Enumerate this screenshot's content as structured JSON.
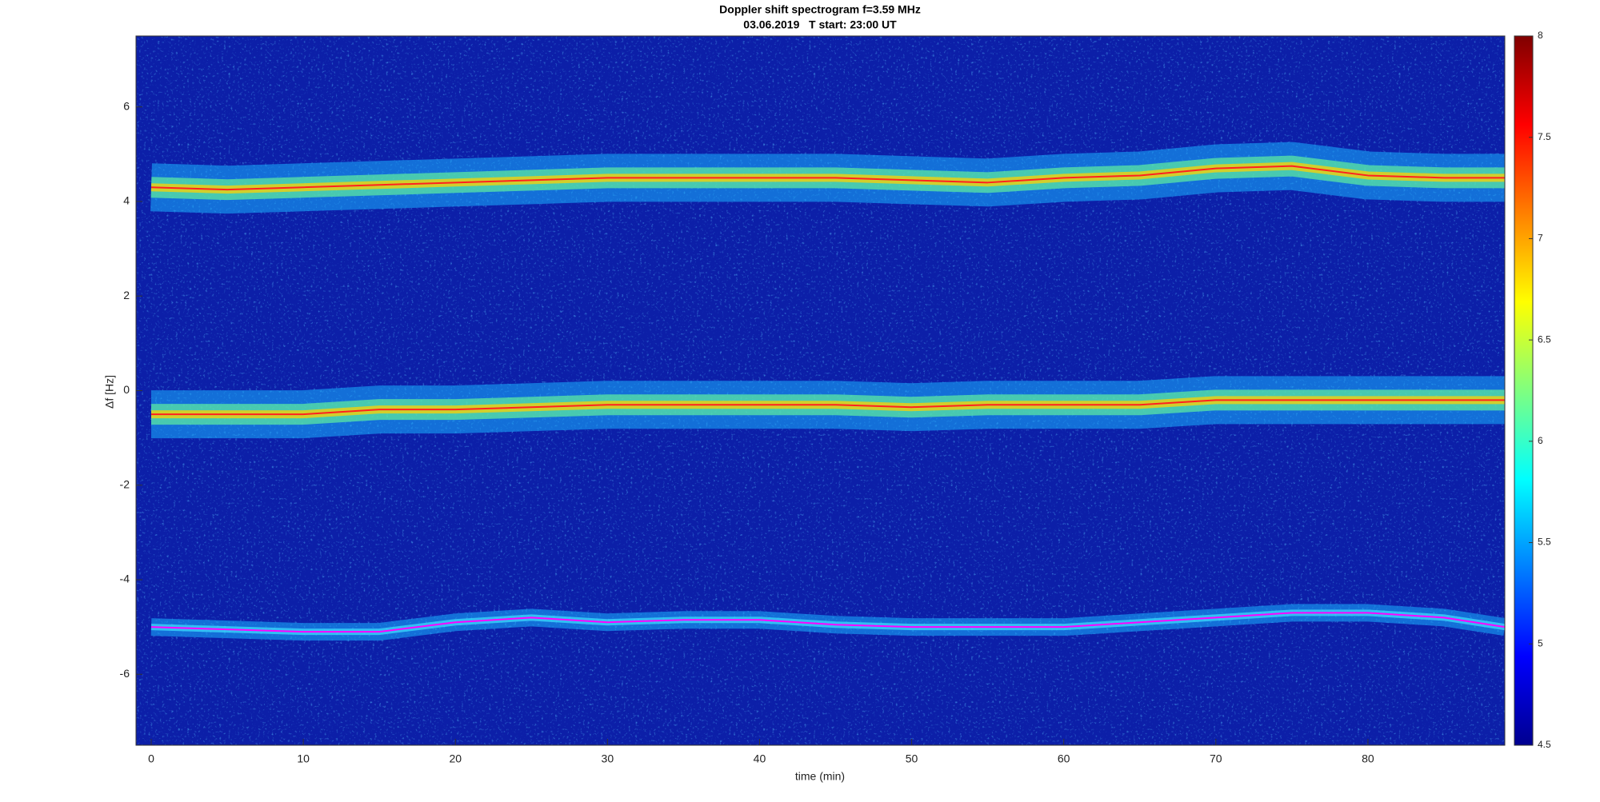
{
  "chart_data": {
    "type": "spectrogram",
    "title": "Doppler shift spectrogram f=3.59 MHz",
    "subtitle": "03.06.2019   T start: 23:00 UT",
    "xlabel": "time (min)",
    "ylabel": "Δf [Hz]",
    "x": [
      0,
      5,
      10,
      15,
      20,
      25,
      30,
      35,
      40,
      45,
      50,
      55,
      60,
      65,
      70,
      75,
      80,
      85,
      89
    ],
    "series": [
      {
        "color": "#ff2020",
        "values": [
          4.3,
          4.25,
          4.3,
          4.35,
          4.4,
          4.45,
          4.5,
          4.5,
          4.5,
          4.5,
          4.45,
          4.4,
          4.5,
          4.55,
          4.7,
          4.75,
          4.55,
          4.5,
          4.5
        ]
      },
      {
        "color": "#ff2020",
        "values": [
          -0.5,
          -0.5,
          -0.5,
          -0.4,
          -0.4,
          -0.35,
          -0.3,
          -0.3,
          -0.3,
          -0.3,
          -0.35,
          -0.3,
          -0.3,
          -0.3,
          -0.2,
          -0.2,
          -0.2,
          -0.2,
          -0.2
        ]
      },
      {
        "color": "#ff00ff",
        "values": [
          -5.0,
          -5.05,
          -5.1,
          -5.1,
          -4.9,
          -4.8,
          -4.9,
          -4.85,
          -4.85,
          -4.95,
          -5.0,
          -5.0,
          -5.0,
          -4.9,
          -4.8,
          -4.7,
          -4.7,
          -4.8,
          -5.0
        ]
      }
    ],
    "xlim": [
      -1,
      89
    ],
    "ylim": [
      -7.5,
      7.5
    ],
    "xticks": [
      0,
      10,
      20,
      30,
      40,
      50,
      60,
      70,
      80
    ],
    "yticks": [
      -6,
      -4,
      -2,
      0,
      2,
      4,
      6
    ],
    "colormap": "jet",
    "clim": [
      4.5,
      8
    ],
    "cticks": [
      4.5,
      5,
      5.5,
      6,
      6.5,
      7,
      7.5,
      8
    ]
  }
}
